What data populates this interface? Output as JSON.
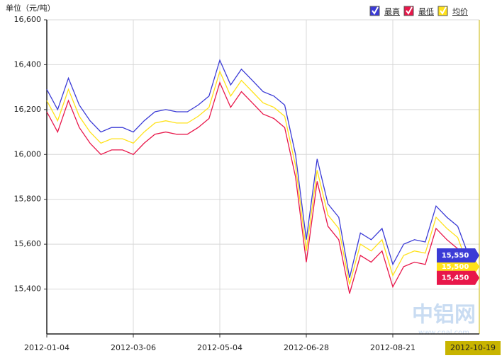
{
  "chart_data": {
    "type": "line",
    "unit_label": "单位（元/吨）",
    "categories": [
      "2012-01-04",
      null,
      null,
      null,
      null,
      null,
      null,
      null,
      "2012-03-06",
      null,
      null,
      null,
      null,
      null,
      null,
      null,
      "2012-05-04",
      null,
      null,
      null,
      null,
      null,
      null,
      null,
      "2012-06-28",
      null,
      null,
      null,
      null,
      null,
      null,
      null,
      "2012-08-21",
      null,
      null,
      null,
      null,
      null,
      null,
      null,
      "2012-10-19"
    ],
    "series": [
      {
        "name": "最高",
        "color": "#3b3bd6",
        "values": [
          16290,
          16200,
          16340,
          16220,
          16150,
          16100,
          16120,
          16120,
          16100,
          16150,
          16190,
          16200,
          16190,
          16190,
          16220,
          16260,
          16420,
          16310,
          16380,
          16330,
          16280,
          16260,
          16220,
          16000,
          15620,
          15980,
          15780,
          15720,
          15450,
          15650,
          15620,
          15670,
          15510,
          15600,
          15620,
          15610,
          15770,
          15720,
          15680,
          15550,
          null
        ],
        "value_labels": [
          null,
          null,
          null,
          null,
          null,
          null,
          null,
          null,
          null,
          null,
          null,
          null,
          null,
          null,
          null,
          null,
          null,
          null,
          null,
          null,
          null,
          null,
          null,
          null,
          null,
          null,
          null,
          null,
          null,
          null,
          null,
          null,
          null,
          null,
          null,
          null,
          null,
          null,
          null,
          "15,550",
          null
        ]
      },
      {
        "name": "最低",
        "color": "#e8174a",
        "values": [
          16190,
          16100,
          16240,
          16120,
          16050,
          16000,
          16020,
          16020,
          16000,
          16050,
          16090,
          16100,
          16090,
          16090,
          16120,
          16160,
          16320,
          16210,
          16280,
          16230,
          16180,
          16160,
          16120,
          15900,
          15520,
          15880,
          15680,
          15620,
          15380,
          15550,
          15520,
          15570,
          15410,
          15500,
          15520,
          15510,
          15670,
          15620,
          15580,
          15450,
          null
        ],
        "value_labels": [
          null,
          null,
          null,
          null,
          null,
          null,
          null,
          null,
          null,
          null,
          null,
          null,
          null,
          null,
          null,
          null,
          null,
          null,
          null,
          null,
          null,
          null,
          null,
          null,
          null,
          null,
          null,
          null,
          null,
          null,
          null,
          null,
          null,
          null,
          null,
          null,
          null,
          null,
          null,
          "15,450",
          null
        ]
      },
      {
        "name": "均价",
        "color": "#ffe21a",
        "values": [
          16240,
          16150,
          16290,
          16170,
          16100,
          16050,
          16070,
          16070,
          16050,
          16100,
          16140,
          16150,
          16140,
          16140,
          16170,
          16210,
          16370,
          16260,
          16330,
          16280,
          16230,
          16210,
          16170,
          15950,
          15570,
          15930,
          15730,
          15670,
          15420,
          15600,
          15570,
          15620,
          15460,
          15550,
          15570,
          15560,
          15720,
          15670,
          15630,
          15500,
          null
        ],
        "value_labels": [
          null,
          null,
          null,
          null,
          null,
          null,
          null,
          null,
          null,
          null,
          null,
          null,
          null,
          null,
          null,
          null,
          null,
          null,
          null,
          null,
          null,
          null,
          null,
          null,
          null,
          null,
          null,
          null,
          null,
          null,
          null,
          null,
          null,
          null,
          null,
          null,
          null,
          null,
          null,
          "15,500",
          null
        ]
      }
    ],
    "ylim": [
      15200,
      16600
    ],
    "yticks": [
      {
        "value": 15400,
        "label": "15,400"
      },
      {
        "value": 15600,
        "label": "15,600"
      },
      {
        "value": 15800,
        "label": "15,800"
      },
      {
        "value": 16000,
        "label": "16,000"
      },
      {
        "value": 16200,
        "label": "16,200"
      },
      {
        "value": 16400,
        "label": "16,400"
      },
      {
        "value": 16600,
        "label": "16,600"
      }
    ],
    "grid": true,
    "legend": "top-right",
    "watermark": "中铝网",
    "watermark_url": "www.cnal.com"
  }
}
